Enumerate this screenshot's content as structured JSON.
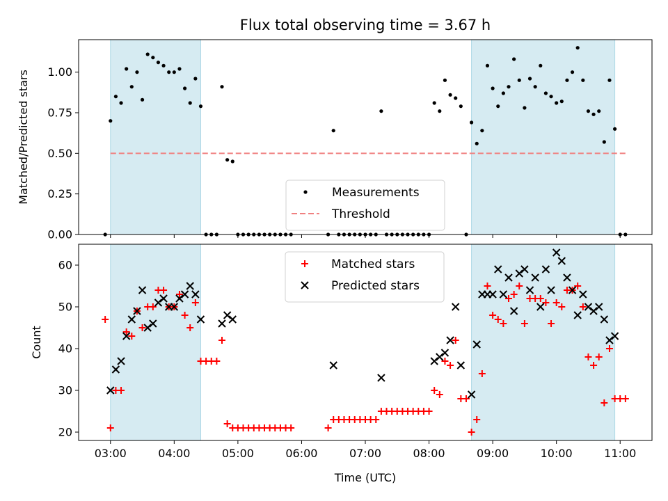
{
  "chart_data": [
    {
      "type": "scatter",
      "title": "Flux total observing time = 3.67 h",
      "xlabel": "",
      "ylabel": "Matched/Predicted stars",
      "xlim": [
        "02:30",
        "11:30"
      ],
      "ylim": [
        0,
        1.2
      ],
      "x_ticks": [
        "03:00",
        "04:00",
        "05:00",
        "06:00",
        "07:00",
        "08:00",
        "09:00",
        "10:00",
        "11:00"
      ],
      "y_ticks": [
        "0.00",
        "0.25",
        "0.50",
        "0.75",
        "1.00"
      ],
      "y_tick_values": [
        0,
        0.25,
        0.5,
        0.75,
        1.0
      ],
      "shaded_intervals": [
        [
          "03:00",
          "04:25"
        ],
        [
          "08:40",
          "10:55"
        ]
      ],
      "legend_position": "lower center",
      "threshold": {
        "name": "Threshold",
        "value": 0.5,
        "x_range": [
          "03:00",
          "11:05"
        ],
        "color": "#f08080"
      },
      "series": [
        {
          "name": "Measurements",
          "color": "#000000",
          "points": [
            [
              "02:55",
              0
            ],
            [
              "03:00",
              0.7
            ],
            [
              "03:05",
              0.85
            ],
            [
              "03:10",
              0.81
            ],
            [
              "03:15",
              1.02
            ],
            [
              "03:20",
              0.91
            ],
            [
              "03:25",
              1.0
            ],
            [
              "03:30",
              0.83
            ],
            [
              "03:35",
              1.11
            ],
            [
              "03:40",
              1.09
            ],
            [
              "03:45",
              1.06
            ],
            [
              "03:50",
              1.04
            ],
            [
              "03:55",
              1.0
            ],
            [
              "04:00",
              1.0
            ],
            [
              "04:05",
              1.02
            ],
            [
              "04:10",
              0.9
            ],
            [
              "04:15",
              0.81
            ],
            [
              "04:20",
              0.96
            ],
            [
              "04:25",
              0.79
            ],
            [
              "04:30",
              0
            ],
            [
              "04:35",
              0
            ],
            [
              "04:40",
              0
            ],
            [
              "04:45",
              0.91
            ],
            [
              "04:50",
              0.46
            ],
            [
              "04:55",
              0.45
            ],
            [
              "05:00",
              0
            ],
            [
              "05:05",
              0
            ],
            [
              "05:10",
              0
            ],
            [
              "05:15",
              0
            ],
            [
              "05:20",
              0
            ],
            [
              "05:25",
              0
            ],
            [
              "05:30",
              0
            ],
            [
              "05:35",
              0
            ],
            [
              "05:40",
              0
            ],
            [
              "05:45",
              0
            ],
            [
              "05:50",
              0
            ],
            [
              "06:25",
              0
            ],
            [
              "06:30",
              0.64
            ],
            [
              "06:35",
              0
            ],
            [
              "06:40",
              0
            ],
            [
              "06:45",
              0
            ],
            [
              "06:50",
              0
            ],
            [
              "06:55",
              0
            ],
            [
              "07:00",
              0
            ],
            [
              "07:05",
              0
            ],
            [
              "07:10",
              0
            ],
            [
              "07:15",
              0.76
            ],
            [
              "07:20",
              0
            ],
            [
              "07:25",
              0
            ],
            [
              "07:30",
              0
            ],
            [
              "07:35",
              0
            ],
            [
              "07:40",
              0
            ],
            [
              "07:45",
              0
            ],
            [
              "07:50",
              0
            ],
            [
              "07:55",
              0
            ],
            [
              "08:00",
              0
            ],
            [
              "08:05",
              0.81
            ],
            [
              "08:10",
              0.76
            ],
            [
              "08:15",
              0.95
            ],
            [
              "08:20",
              0.86
            ],
            [
              "08:25",
              0.84
            ],
            [
              "08:30",
              0.79
            ],
            [
              "08:35",
              0
            ],
            [
              "08:40",
              0.69
            ],
            [
              "08:45",
              0.56
            ],
            [
              "08:50",
              0.64
            ],
            [
              "08:55",
              1.04
            ],
            [
              "09:00",
              0.9
            ],
            [
              "09:05",
              0.79
            ],
            [
              "09:10",
              0.87
            ],
            [
              "09:15",
              0.91
            ],
            [
              "09:20",
              1.08
            ],
            [
              "09:25",
              0.95
            ],
            [
              "09:30",
              0.78
            ],
            [
              "09:35",
              0.96
            ],
            [
              "09:40",
              0.91
            ],
            [
              "09:45",
              1.04
            ],
            [
              "09:50",
              0.87
            ],
            [
              "09:55",
              0.85
            ],
            [
              "10:00",
              0.81
            ],
            [
              "10:05",
              0.82
            ],
            [
              "10:10",
              0.95
            ],
            [
              "10:15",
              1.0
            ],
            [
              "10:20",
              1.15
            ],
            [
              "10:25",
              0.95
            ],
            [
              "10:30",
              0.76
            ],
            [
              "10:35",
              0.74
            ],
            [
              "10:40",
              0.76
            ],
            [
              "10:45",
              0.57
            ],
            [
              "10:50",
              0.95
            ],
            [
              "10:55",
              0.65
            ],
            [
              "11:00",
              0
            ],
            [
              "11:05",
              0
            ]
          ]
        }
      ]
    },
    {
      "type": "scatter",
      "title": "",
      "xlabel": "Time (UTC)",
      "ylabel": "Count",
      "xlim": [
        "02:30",
        "11:30"
      ],
      "ylim": [
        18,
        65
      ],
      "x_ticks": [
        "03:00",
        "04:00",
        "05:00",
        "06:00",
        "07:00",
        "08:00",
        "09:00",
        "10:00",
        "11:00"
      ],
      "y_ticks": [
        "20",
        "30",
        "40",
        "50",
        "60"
      ],
      "y_tick_values": [
        20,
        30,
        40,
        50,
        60
      ],
      "shaded_intervals": [
        [
          "03:00",
          "04:25"
        ],
        [
          "08:40",
          "10:55"
        ]
      ],
      "legend_position": "upper center",
      "series": [
        {
          "name": "Matched stars",
          "marker": "+",
          "color": "#ff0000",
          "points": [
            [
              "02:55",
              47
            ],
            [
              "03:00",
              21
            ],
            [
              "03:05",
              30
            ],
            [
              "03:10",
              30
            ],
            [
              "03:15",
              44
            ],
            [
              "03:20",
              43
            ],
            [
              "03:25",
              49
            ],
            [
              "03:30",
              45
            ],
            [
              "03:35",
              50
            ],
            [
              "03:40",
              50
            ],
            [
              "03:45",
              54
            ],
            [
              "03:50",
              54
            ],
            [
              "03:55",
              50
            ],
            [
              "04:00",
              50
            ],
            [
              "04:05",
              53
            ],
            [
              "04:10",
              48
            ],
            [
              "04:15",
              45
            ],
            [
              "04:20",
              51
            ],
            [
              "04:25",
              37
            ],
            [
              "04:30",
              37
            ],
            [
              "04:35",
              37
            ],
            [
              "04:40",
              37
            ],
            [
              "04:45",
              42
            ],
            [
              "04:50",
              22
            ],
            [
              "04:55",
              21
            ],
            [
              "05:00",
              21
            ],
            [
              "05:05",
              21
            ],
            [
              "05:10",
              21
            ],
            [
              "05:15",
              21
            ],
            [
              "05:20",
              21
            ],
            [
              "05:25",
              21
            ],
            [
              "05:30",
              21
            ],
            [
              "05:35",
              21
            ],
            [
              "05:40",
              21
            ],
            [
              "05:45",
              21
            ],
            [
              "05:50",
              21
            ],
            [
              "06:25",
              21
            ],
            [
              "06:30",
              23
            ],
            [
              "06:35",
              23
            ],
            [
              "06:40",
              23
            ],
            [
              "06:45",
              23
            ],
            [
              "06:50",
              23
            ],
            [
              "06:55",
              23
            ],
            [
              "07:00",
              23
            ],
            [
              "07:05",
              23
            ],
            [
              "07:10",
              23
            ],
            [
              "07:15",
              25
            ],
            [
              "07:20",
              25
            ],
            [
              "07:25",
              25
            ],
            [
              "07:30",
              25
            ],
            [
              "07:35",
              25
            ],
            [
              "07:40",
              25
            ],
            [
              "07:45",
              25
            ],
            [
              "07:50",
              25
            ],
            [
              "07:55",
              25
            ],
            [
              "08:00",
              25
            ],
            [
              "08:05",
              30
            ],
            [
              "08:10",
              29
            ],
            [
              "08:15",
              37
            ],
            [
              "08:20",
              36
            ],
            [
              "08:25",
              42
            ],
            [
              "08:30",
              28
            ],
            [
              "08:35",
              28
            ],
            [
              "08:40",
              20
            ],
            [
              "08:45",
              23
            ],
            [
              "08:50",
              34
            ],
            [
              "08:55",
              55
            ],
            [
              "09:00",
              48
            ],
            [
              "09:05",
              47
            ],
            [
              "09:10",
              46
            ],
            [
              "09:15",
              52
            ],
            [
              "09:20",
              53
            ],
            [
              "09:25",
              55
            ],
            [
              "09:30",
              46
            ],
            [
              "09:35",
              52
            ],
            [
              "09:40",
              52
            ],
            [
              "09:45",
              52
            ],
            [
              "09:50",
              51
            ],
            [
              "09:55",
              46
            ],
            [
              "10:00",
              51
            ],
            [
              "10:05",
              50
            ],
            [
              "10:10",
              54
            ],
            [
              "10:15",
              54
            ],
            [
              "10:20",
              55
            ],
            [
              "10:25",
              50
            ],
            [
              "10:30",
              38
            ],
            [
              "10:35",
              36
            ],
            [
              "10:40",
              38
            ],
            [
              "10:45",
              27
            ],
            [
              "10:50",
              40
            ],
            [
              "10:55",
              28
            ],
            [
              "11:00",
              28
            ],
            [
              "11:05",
              28
            ]
          ]
        },
        {
          "name": "Predicted stars",
          "marker": "x",
          "color": "#000000",
          "points": [
            [
              "03:00",
              30
            ],
            [
              "03:05",
              35
            ],
            [
              "03:10",
              37
            ],
            [
              "03:15",
              43
            ],
            [
              "03:20",
              47
            ],
            [
              "03:25",
              49
            ],
            [
              "03:30",
              54
            ],
            [
              "03:35",
              45
            ],
            [
              "03:40",
              46
            ],
            [
              "03:45",
              51
            ],
            [
              "03:50",
              52
            ],
            [
              "03:55",
              50
            ],
            [
              "04:00",
              50
            ],
            [
              "04:05",
              52
            ],
            [
              "04:10",
              53
            ],
            [
              "04:15",
              55
            ],
            [
              "04:20",
              53
            ],
            [
              "04:25",
              47
            ],
            [
              "04:45",
              46
            ],
            [
              "04:50",
              48
            ],
            [
              "04:55",
              47
            ],
            [
              "06:30",
              36
            ],
            [
              "07:15",
              33
            ],
            [
              "08:05",
              37
            ],
            [
              "08:10",
              38
            ],
            [
              "08:15",
              39
            ],
            [
              "08:20",
              42
            ],
            [
              "08:25",
              50
            ],
            [
              "08:30",
              36
            ],
            [
              "08:40",
              29
            ],
            [
              "08:45",
              41
            ],
            [
              "08:50",
              53
            ],
            [
              "08:55",
              53
            ],
            [
              "09:00",
              53
            ],
            [
              "09:05",
              59
            ],
            [
              "09:10",
              53
            ],
            [
              "09:15",
              57
            ],
            [
              "09:20",
              49
            ],
            [
              "09:25",
              58
            ],
            [
              "09:30",
              59
            ],
            [
              "09:35",
              54
            ],
            [
              "09:40",
              57
            ],
            [
              "09:45",
              50
            ],
            [
              "09:50",
              59
            ],
            [
              "09:55",
              54
            ],
            [
              "10:00",
              63
            ],
            [
              "10:05",
              61
            ],
            [
              "10:10",
              57
            ],
            [
              "10:15",
              54
            ],
            [
              "10:20",
              48
            ],
            [
              "10:25",
              53
            ],
            [
              "10:30",
              50
            ],
            [
              "10:35",
              49
            ],
            [
              "10:40",
              50
            ],
            [
              "10:45",
              47
            ],
            [
              "10:50",
              42
            ],
            [
              "10:55",
              43
            ]
          ]
        }
      ]
    }
  ]
}
